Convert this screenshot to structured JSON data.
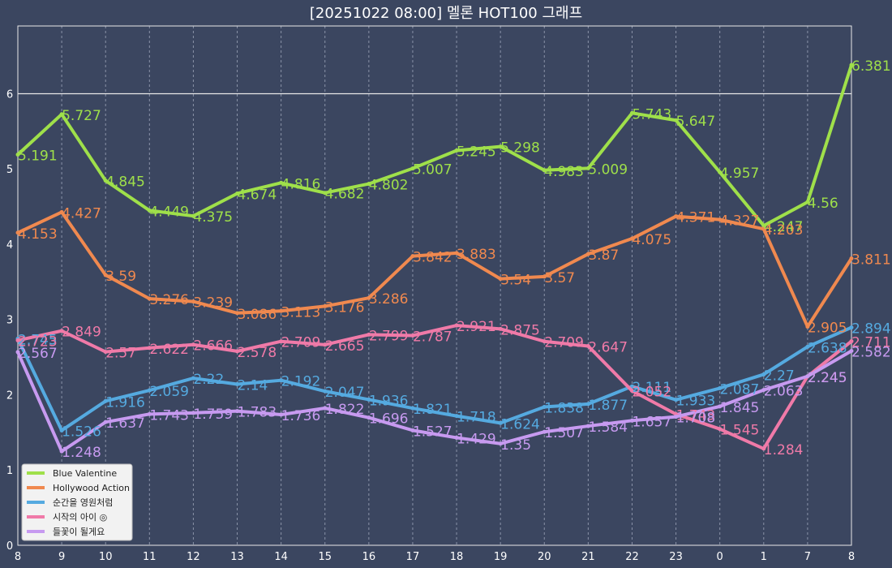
{
  "chart_data": {
    "type": "line",
    "title": "[20251022 08:00] 멜론 HOT100 그래프",
    "x": [
      "8",
      "9",
      "10",
      "11",
      "12",
      "13",
      "14",
      "15",
      "16",
      "17",
      "18",
      "19",
      "20",
      "21",
      "22",
      "23",
      "0",
      "1",
      "7",
      "8"
    ],
    "ylim": [
      0,
      6.9
    ],
    "yticks": [
      0,
      1,
      2,
      3,
      4,
      5,
      6
    ],
    "grid": true,
    "legend": "bottom-left",
    "series": [
      {
        "name": "Blue Valentine",
        "color": "#9fe04a",
        "values": [
          5.191,
          5.727,
          4.845,
          4.449,
          4.375,
          4.674,
          4.816,
          4.682,
          4.802,
          5.007,
          5.245,
          5.298,
          4.983,
          5.009,
          5.743,
          5.647,
          4.957,
          4.247,
          4.56,
          6.381
        ]
      },
      {
        "name": "Hollywood Action",
        "color": "#f0894f",
        "values": [
          4.153,
          4.427,
          3.59,
          3.276,
          3.239,
          3.086,
          3.113,
          3.176,
          3.286,
          3.842,
          3.883,
          3.54,
          3.57,
          3.87,
          4.075,
          4.371,
          4.327,
          4.203,
          2.905,
          3.811
        ]
      },
      {
        "name": "순간을 영원처럼",
        "color": "#55aae0",
        "values": [
          2.745,
          1.526,
          1.916,
          2.059,
          2.22,
          2.14,
          2.192,
          2.047,
          1.936,
          1.821,
          1.718,
          1.624,
          1.838,
          1.877,
          2.111,
          1.933,
          2.087,
          2.27,
          2.638,
          2.894
        ]
      },
      {
        "name": "시작의 아이 ◎",
        "color": "#f07aa8",
        "values": [
          2.723,
          2.849,
          2.57,
          2.622,
          2.666,
          2.578,
          2.709,
          2.665,
          2.799,
          2.787,
          2.921,
          2.875,
          2.709,
          2.647,
          2.052,
          1.743,
          1.545,
          1.284,
          2.245,
          2.711
        ]
      },
      {
        "name": "들꽃이 될게요",
        "color": "#c79af0",
        "values": [
          2.567,
          1.248,
          1.637,
          1.743,
          1.759,
          1.783,
          1.736,
          1.822,
          1.696,
          1.527,
          1.429,
          1.35,
          1.507,
          1.584,
          1.657,
          1.708,
          1.845,
          2.063,
          2.245,
          2.582
        ]
      }
    ]
  }
}
